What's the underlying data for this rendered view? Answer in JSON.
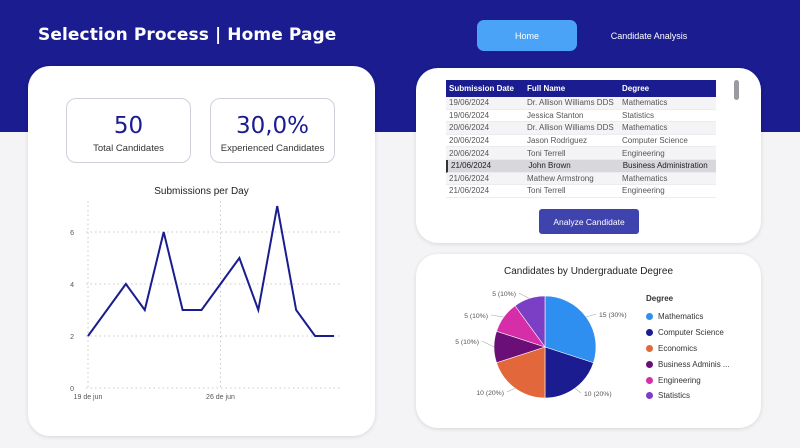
{
  "header": {
    "title": "Selection Process | Home Page",
    "nav": [
      {
        "label": "Home",
        "active": true
      },
      {
        "label": "Candidate Analysis",
        "active": false
      }
    ]
  },
  "kpis": [
    {
      "value": "50",
      "label": "Total Candidates"
    },
    {
      "value": "30,0%",
      "label": "Experienced Candidates"
    }
  ],
  "table": {
    "columns": [
      "Submission Date",
      "Full Name",
      "Degree"
    ],
    "rows": [
      [
        "19/06/2024",
        "Dr. Allison Williams DDS",
        "Mathematics"
      ],
      [
        "19/06/2024",
        "Jessica Stanton",
        "Statistics"
      ],
      [
        "20/06/2024",
        "Dr. Allison Williams DDS",
        "Mathematics"
      ],
      [
        "20/06/2024",
        "Jason Rodriguez",
        "Computer Science"
      ],
      [
        "20/06/2024",
        "Toni Terrell",
        "Engineering"
      ],
      [
        "21/06/2024",
        "John Brown",
        "Business Administration"
      ],
      [
        "21/06/2024",
        "Mathew Armstrong",
        "Mathematics"
      ],
      [
        "21/06/2024",
        "Toni Terrell",
        "Engineering"
      ]
    ],
    "selected_row": 5,
    "button_label": "Analyze Candidate"
  },
  "chart_data": [
    {
      "type": "line",
      "title": "Submissions per Day",
      "x_tick_labels": [
        "19 de jun",
        "26 de jun"
      ],
      "y_ticks": [
        0,
        2,
        4,
        6
      ],
      "ylim": [
        0,
        7
      ],
      "values": [
        2,
        3,
        4,
        3,
        6,
        3,
        3,
        4,
        5,
        3,
        7,
        3,
        2,
        2
      ],
      "grid": true,
      "color": "#1a1c8f"
    },
    {
      "type": "pie",
      "title": "Candidates by Undergraduate Degree",
      "legend_title": "Degree",
      "legend_placement": "right",
      "slices": [
        {
          "label": "Mathematics",
          "value": 15,
          "pct": "30%",
          "color": "#2f8ff0"
        },
        {
          "label": "Computer Science",
          "value": 10,
          "pct": "20%",
          "color": "#1a1c8f"
        },
        {
          "label": "Economics",
          "value": 10,
          "pct": "20%",
          "color": "#e2673b"
        },
        {
          "label": "Business Adminis ...",
          "value": 5,
          "pct": "10%",
          "color": "#6b0f78"
        },
        {
          "label": "Engineering",
          "value": 5,
          "pct": "10%",
          "color": "#d62ea8"
        },
        {
          "label": "Statistics",
          "value": 5,
          "pct": "10%",
          "color": "#7a3fc4"
        }
      ]
    }
  ]
}
